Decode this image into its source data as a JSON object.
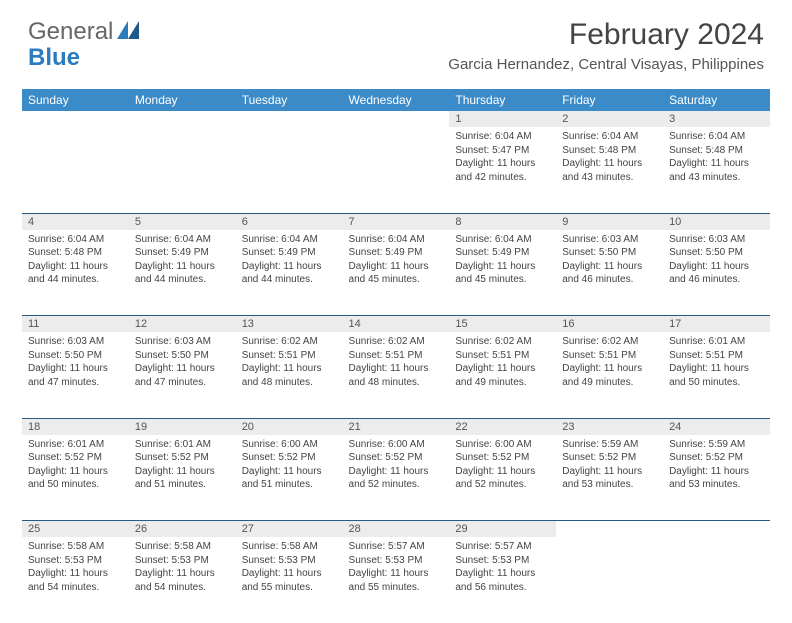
{
  "logo": {
    "text1": "General",
    "text2": "Blue"
  },
  "title": "February 2024",
  "location": "Garcia Hernandez, Central Visayas, Philippines",
  "colors": {
    "header_bg": "#3b8bc9",
    "header_text": "#ffffff",
    "daynum_bg": "#ececec",
    "border": "#2b5a80",
    "text": "#444444",
    "logo_gray": "#666666",
    "logo_blue": "#2b7bbd"
  },
  "day_headers": [
    "Sunday",
    "Monday",
    "Tuesday",
    "Wednesday",
    "Thursday",
    "Friday",
    "Saturday"
  ],
  "weeks": [
    {
      "nums": [
        "",
        "",
        "",
        "",
        "1",
        "2",
        "3"
      ],
      "cells": [
        {
          "sunrise": "",
          "sunset": "",
          "daylight": ""
        },
        {
          "sunrise": "",
          "sunset": "",
          "daylight": ""
        },
        {
          "sunrise": "",
          "sunset": "",
          "daylight": ""
        },
        {
          "sunrise": "",
          "sunset": "",
          "daylight": ""
        },
        {
          "sunrise": "Sunrise: 6:04 AM",
          "sunset": "Sunset: 5:47 PM",
          "daylight": "Daylight: 11 hours and 42 minutes."
        },
        {
          "sunrise": "Sunrise: 6:04 AM",
          "sunset": "Sunset: 5:48 PM",
          "daylight": "Daylight: 11 hours and 43 minutes."
        },
        {
          "sunrise": "Sunrise: 6:04 AM",
          "sunset": "Sunset: 5:48 PM",
          "daylight": "Daylight: 11 hours and 43 minutes."
        }
      ]
    },
    {
      "nums": [
        "4",
        "5",
        "6",
        "7",
        "8",
        "9",
        "10"
      ],
      "cells": [
        {
          "sunrise": "Sunrise: 6:04 AM",
          "sunset": "Sunset: 5:48 PM",
          "daylight": "Daylight: 11 hours and 44 minutes."
        },
        {
          "sunrise": "Sunrise: 6:04 AM",
          "sunset": "Sunset: 5:49 PM",
          "daylight": "Daylight: 11 hours and 44 minutes."
        },
        {
          "sunrise": "Sunrise: 6:04 AM",
          "sunset": "Sunset: 5:49 PM",
          "daylight": "Daylight: 11 hours and 44 minutes."
        },
        {
          "sunrise": "Sunrise: 6:04 AM",
          "sunset": "Sunset: 5:49 PM",
          "daylight": "Daylight: 11 hours and 45 minutes."
        },
        {
          "sunrise": "Sunrise: 6:04 AM",
          "sunset": "Sunset: 5:49 PM",
          "daylight": "Daylight: 11 hours and 45 minutes."
        },
        {
          "sunrise": "Sunrise: 6:03 AM",
          "sunset": "Sunset: 5:50 PM",
          "daylight": "Daylight: 11 hours and 46 minutes."
        },
        {
          "sunrise": "Sunrise: 6:03 AM",
          "sunset": "Sunset: 5:50 PM",
          "daylight": "Daylight: 11 hours and 46 minutes."
        }
      ]
    },
    {
      "nums": [
        "11",
        "12",
        "13",
        "14",
        "15",
        "16",
        "17"
      ],
      "cells": [
        {
          "sunrise": "Sunrise: 6:03 AM",
          "sunset": "Sunset: 5:50 PM",
          "daylight": "Daylight: 11 hours and 47 minutes."
        },
        {
          "sunrise": "Sunrise: 6:03 AM",
          "sunset": "Sunset: 5:50 PM",
          "daylight": "Daylight: 11 hours and 47 minutes."
        },
        {
          "sunrise": "Sunrise: 6:02 AM",
          "sunset": "Sunset: 5:51 PM",
          "daylight": "Daylight: 11 hours and 48 minutes."
        },
        {
          "sunrise": "Sunrise: 6:02 AM",
          "sunset": "Sunset: 5:51 PM",
          "daylight": "Daylight: 11 hours and 48 minutes."
        },
        {
          "sunrise": "Sunrise: 6:02 AM",
          "sunset": "Sunset: 5:51 PM",
          "daylight": "Daylight: 11 hours and 49 minutes."
        },
        {
          "sunrise": "Sunrise: 6:02 AM",
          "sunset": "Sunset: 5:51 PM",
          "daylight": "Daylight: 11 hours and 49 minutes."
        },
        {
          "sunrise": "Sunrise: 6:01 AM",
          "sunset": "Sunset: 5:51 PM",
          "daylight": "Daylight: 11 hours and 50 minutes."
        }
      ]
    },
    {
      "nums": [
        "18",
        "19",
        "20",
        "21",
        "22",
        "23",
        "24"
      ],
      "cells": [
        {
          "sunrise": "Sunrise: 6:01 AM",
          "sunset": "Sunset: 5:52 PM",
          "daylight": "Daylight: 11 hours and 50 minutes."
        },
        {
          "sunrise": "Sunrise: 6:01 AM",
          "sunset": "Sunset: 5:52 PM",
          "daylight": "Daylight: 11 hours and 51 minutes."
        },
        {
          "sunrise": "Sunrise: 6:00 AM",
          "sunset": "Sunset: 5:52 PM",
          "daylight": "Daylight: 11 hours and 51 minutes."
        },
        {
          "sunrise": "Sunrise: 6:00 AM",
          "sunset": "Sunset: 5:52 PM",
          "daylight": "Daylight: 11 hours and 52 minutes."
        },
        {
          "sunrise": "Sunrise: 6:00 AM",
          "sunset": "Sunset: 5:52 PM",
          "daylight": "Daylight: 11 hours and 52 minutes."
        },
        {
          "sunrise": "Sunrise: 5:59 AM",
          "sunset": "Sunset: 5:52 PM",
          "daylight": "Daylight: 11 hours and 53 minutes."
        },
        {
          "sunrise": "Sunrise: 5:59 AM",
          "sunset": "Sunset: 5:52 PM",
          "daylight": "Daylight: 11 hours and 53 minutes."
        }
      ]
    },
    {
      "nums": [
        "25",
        "26",
        "27",
        "28",
        "29",
        "",
        ""
      ],
      "cells": [
        {
          "sunrise": "Sunrise: 5:58 AM",
          "sunset": "Sunset: 5:53 PM",
          "daylight": "Daylight: 11 hours and 54 minutes."
        },
        {
          "sunrise": "Sunrise: 5:58 AM",
          "sunset": "Sunset: 5:53 PM",
          "daylight": "Daylight: 11 hours and 54 minutes."
        },
        {
          "sunrise": "Sunrise: 5:58 AM",
          "sunset": "Sunset: 5:53 PM",
          "daylight": "Daylight: 11 hours and 55 minutes."
        },
        {
          "sunrise": "Sunrise: 5:57 AM",
          "sunset": "Sunset: 5:53 PM",
          "daylight": "Daylight: 11 hours and 55 minutes."
        },
        {
          "sunrise": "Sunrise: 5:57 AM",
          "sunset": "Sunset: 5:53 PM",
          "daylight": "Daylight: 11 hours and 56 minutes."
        },
        {
          "sunrise": "",
          "sunset": "",
          "daylight": ""
        },
        {
          "sunrise": "",
          "sunset": "",
          "daylight": ""
        }
      ]
    }
  ]
}
